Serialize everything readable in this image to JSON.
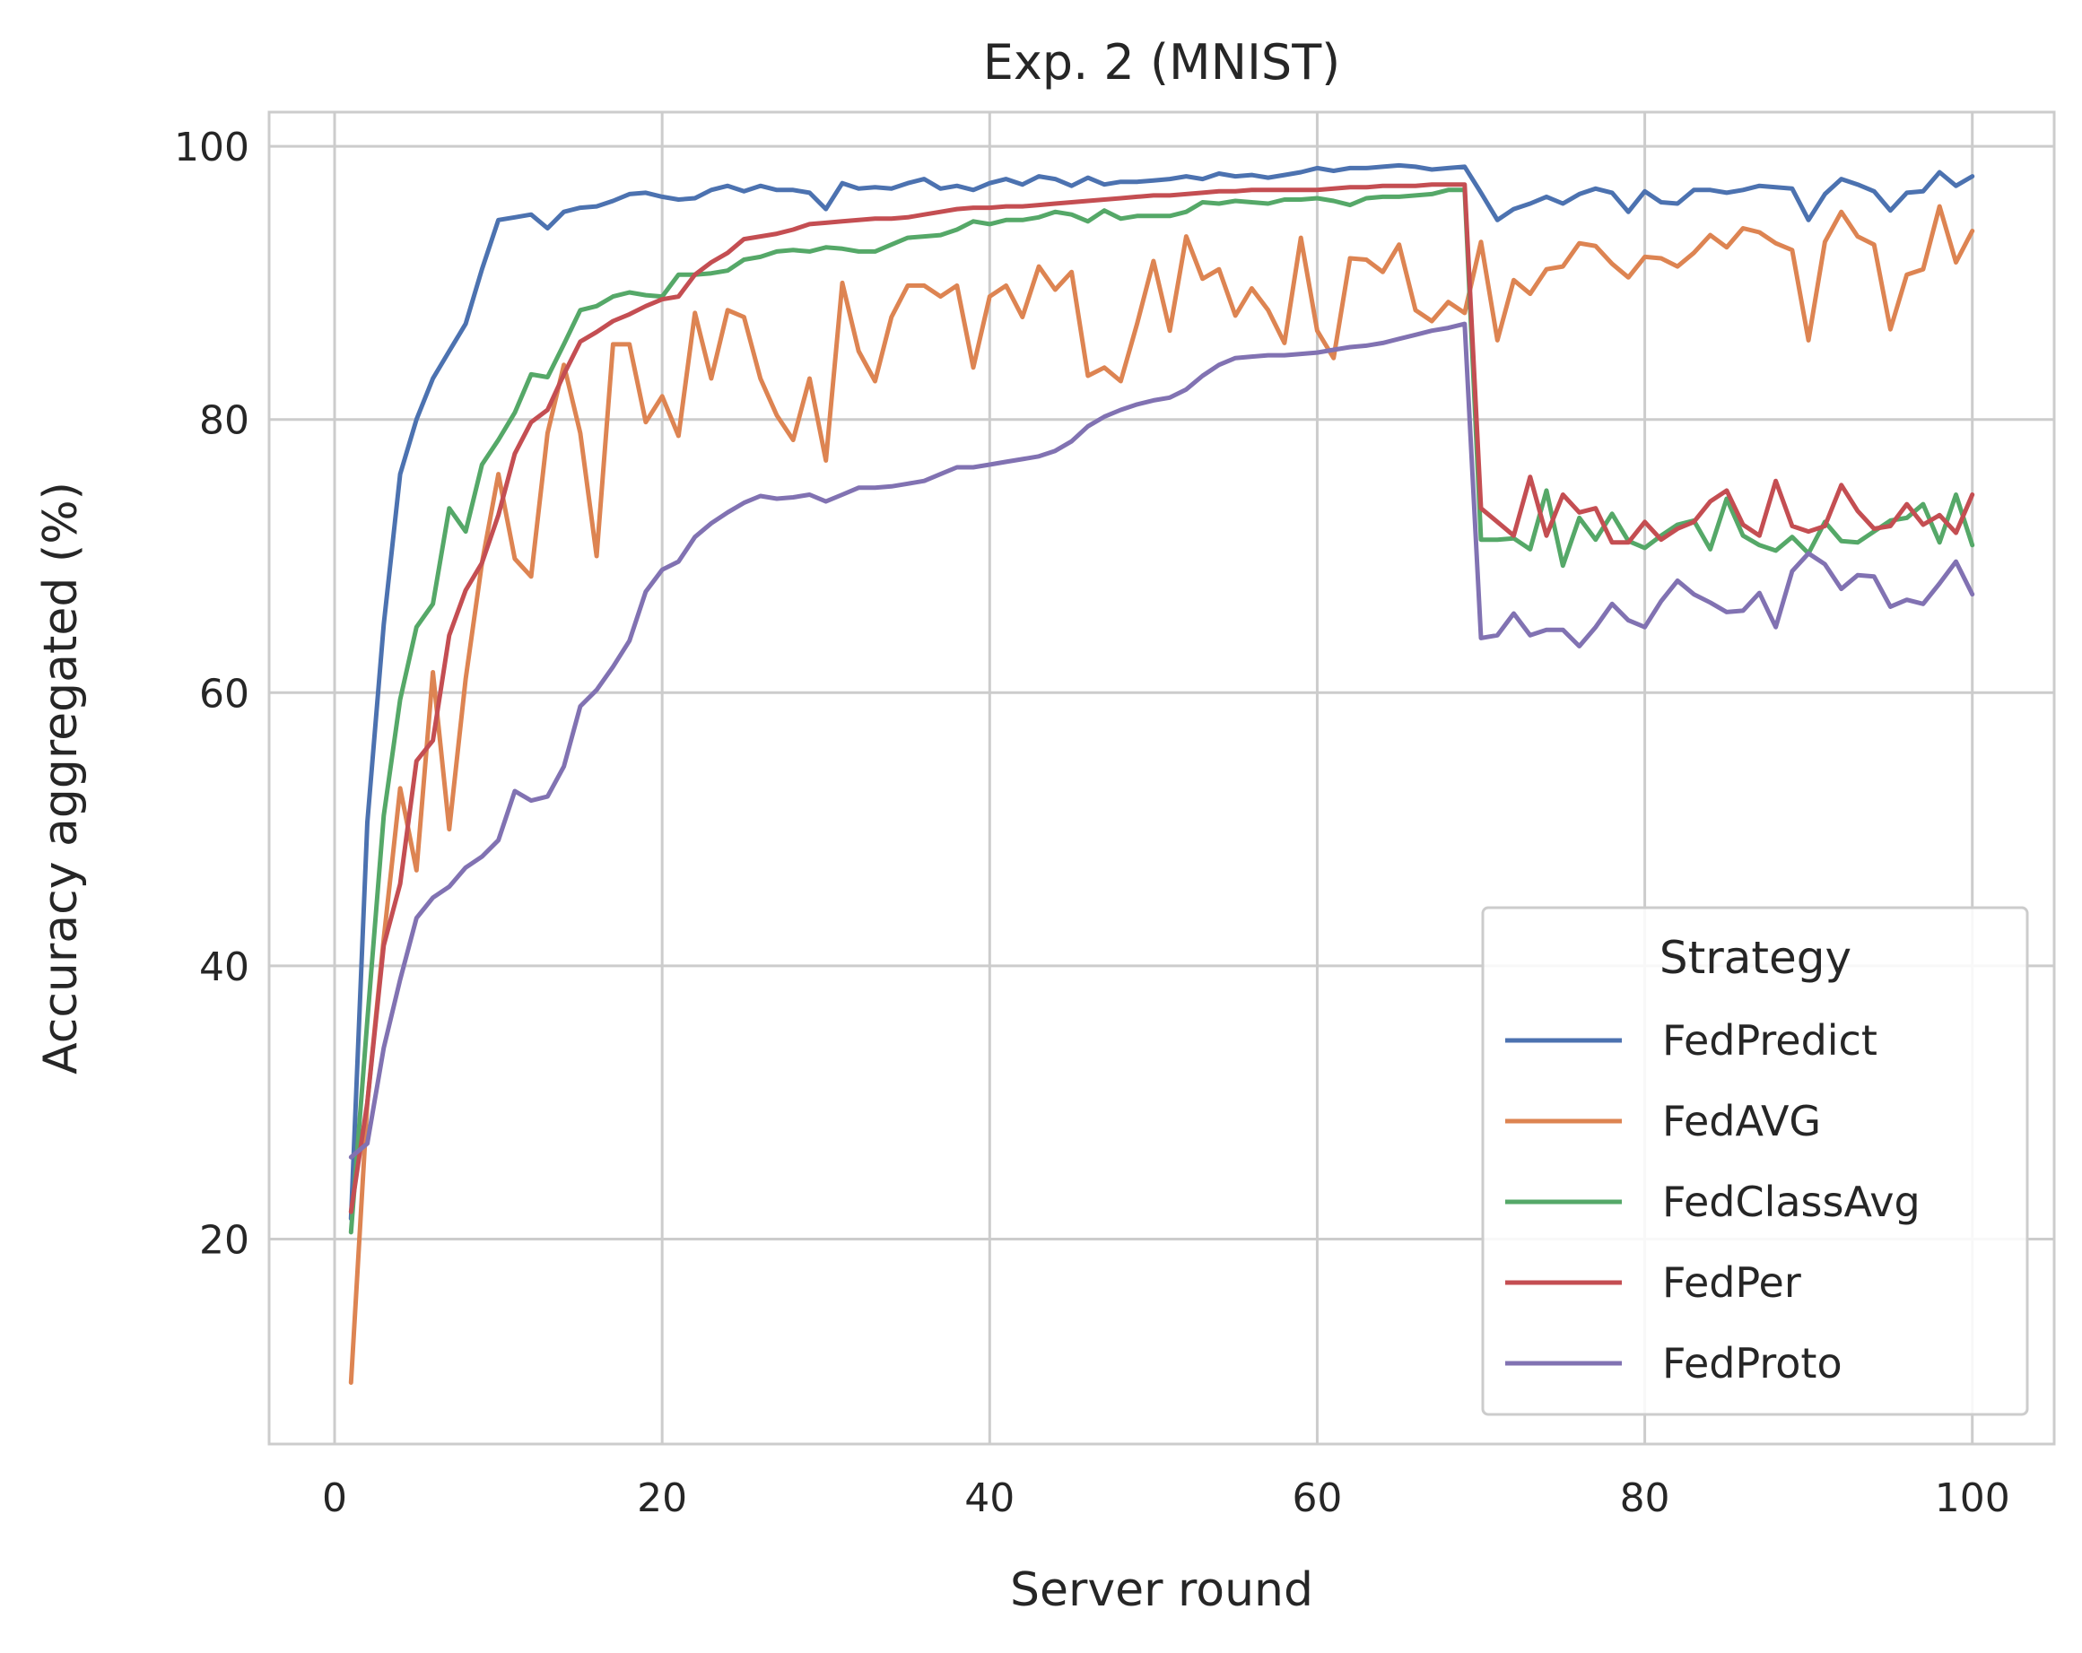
{
  "chart_data": {
    "type": "line",
    "title": "Exp. 2 (MNIST)",
    "xlabel": "Server round",
    "ylabel": "Accuracy aggregated (%)",
    "xlim": [
      -4,
      105
    ],
    "ylim": [
      5,
      102.5
    ],
    "xticks": [
      "0",
      "20",
      "40",
      "60",
      "80",
      "100"
    ],
    "yticks": [
      "20",
      "40",
      "60",
      "80",
      "100"
    ],
    "grid": true,
    "legend": {
      "title": "Strategy",
      "placement": "lower-right"
    },
    "x": [
      1,
      2,
      3,
      4,
      5,
      6,
      7,
      8,
      9,
      10,
      11,
      12,
      13,
      14,
      15,
      16,
      17,
      18,
      19,
      20,
      21,
      22,
      23,
      24,
      25,
      26,
      27,
      28,
      29,
      30,
      31,
      32,
      33,
      34,
      35,
      36,
      37,
      38,
      39,
      40,
      41,
      42,
      43,
      44,
      45,
      46,
      47,
      48,
      49,
      50,
      51,
      52,
      53,
      54,
      55,
      56,
      57,
      58,
      59,
      60,
      61,
      62,
      63,
      64,
      65,
      66,
      67,
      68,
      69,
      70,
      71,
      72,
      73,
      74,
      75,
      76,
      77,
      78,
      79,
      80,
      81,
      82,
      83,
      84,
      85,
      86,
      87,
      88,
      89,
      90,
      91,
      92,
      93,
      94,
      95,
      96,
      97,
      98,
      99,
      100
    ],
    "series": [
      {
        "name": "FedPredict",
        "color": "#4c72b0",
        "values": [
          21.5,
          50.5,
          65.0,
          76.0,
          80.0,
          83.0,
          85.0,
          87.0,
          91.0,
          94.6,
          94.8,
          95.0,
          94.0,
          95.2,
          95.5,
          95.6,
          96.0,
          96.5,
          96.6,
          96.3,
          96.1,
          96.2,
          96.8,
          97.1,
          96.7,
          97.1,
          96.8,
          96.8,
          96.6,
          95.4,
          97.3,
          96.9,
          97.0,
          96.9,
          97.3,
          97.6,
          96.9,
          97.1,
          96.8,
          97.3,
          97.6,
          97.2,
          97.8,
          97.6,
          97.1,
          97.7,
          97.2,
          97.4,
          97.4,
          97.5,
          97.6,
          97.8,
          97.6,
          98.0,
          97.8,
          97.9,
          97.7,
          97.9,
          98.1,
          98.4,
          98.2,
          98.4,
          98.4,
          98.5,
          98.6,
          98.5,
          98.3,
          98.4,
          98.5,
          96.6,
          94.6,
          95.4,
          95.8,
          96.3,
          95.8,
          96.5,
          96.9,
          96.6,
          95.2,
          96.7,
          95.9,
          95.8,
          96.8,
          96.8,
          96.6,
          96.8,
          97.1,
          97.0,
          96.9,
          94.6,
          96.5,
          97.6,
          97.2,
          96.7,
          95.3,
          96.6,
          96.7,
          98.1,
          97.1,
          97.8
        ]
      },
      {
        "name": "FedAVG",
        "color": "#dd8452",
        "values": [
          9.5,
          30.0,
          42.0,
          53.0,
          47.0,
          61.5,
          50.0,
          61.0,
          69.5,
          76.0,
          69.8,
          68.5,
          79.0,
          84.0,
          79.0,
          70.0,
          85.5,
          85.5,
          79.8,
          81.7,
          78.8,
          87.8,
          83.0,
          88.0,
          87.5,
          83.0,
          80.3,
          78.5,
          83.0,
          77.0,
          90.0,
          85.0,
          82.8,
          87.5,
          89.8,
          89.8,
          89.0,
          89.8,
          83.8,
          89.0,
          89.8,
          87.5,
          91.2,
          89.5,
          90.8,
          83.2,
          83.8,
          82.8,
          87.0,
          91.6,
          86.5,
          93.4,
          90.3,
          91.0,
          87.6,
          89.6,
          88.0,
          85.6,
          93.3,
          86.5,
          84.5,
          91.8,
          91.7,
          90.8,
          92.8,
          88.0,
          87.2,
          88.6,
          87.8,
          93.0,
          85.8,
          90.2,
          89.2,
          91.0,
          91.2,
          92.9,
          92.7,
          91.4,
          90.4,
          91.9,
          91.8,
          91.2,
          92.2,
          93.5,
          92.6,
          94.0,
          93.7,
          92.9,
          92.4,
          85.8,
          93.0,
          95.2,
          93.4,
          92.8,
          86.6,
          90.6,
          91.0,
          95.6,
          91.5,
          93.8
        ]
      },
      {
        "name": "FedClassAvg",
        "color": "#55a868",
        "values": [
          20.5,
          36.0,
          51.0,
          59.5,
          64.8,
          66.5,
          73.5,
          71.8,
          76.7,
          78.5,
          80.5,
          83.3,
          83.1,
          85.5,
          88.0,
          88.3,
          89.0,
          89.3,
          89.1,
          89.0,
          90.6,
          90.6,
          90.7,
          90.9,
          91.7,
          91.9,
          92.3,
          92.4,
          92.3,
          92.6,
          92.5,
          92.3,
          92.3,
          92.8,
          93.3,
          93.4,
          93.5,
          93.9,
          94.5,
          94.3,
          94.6,
          94.6,
          94.8,
          95.2,
          95.0,
          94.5,
          95.3,
          94.7,
          94.9,
          94.9,
          94.9,
          95.2,
          95.9,
          95.8,
          96.0,
          95.9,
          95.8,
          96.1,
          96.1,
          96.2,
          96.0,
          95.7,
          96.2,
          96.3,
          96.3,
          96.4,
          96.5,
          96.8,
          96.8,
          71.2,
          71.2,
          71.3,
          70.5,
          74.8,
          69.3,
          72.8,
          71.2,
          73.1,
          71.1,
          70.6,
          71.5,
          72.3,
          72.6,
          70.5,
          74.2,
          71.5,
          70.8,
          70.4,
          71.4,
          70.2,
          72.5,
          71.1,
          71.0,
          71.8,
          72.6,
          72.8,
          73.8,
          71.0,
          74.5,
          70.8
        ]
      },
      {
        "name": "FedPer",
        "color": "#c44e52",
        "values": [
          22.0,
          30.0,
          41.5,
          46.0,
          55.0,
          56.5,
          64.2,
          67.5,
          69.5,
          73.0,
          77.5,
          79.8,
          80.7,
          83.3,
          85.7,
          86.4,
          87.2,
          87.7,
          88.3,
          88.8,
          89.0,
          90.6,
          91.5,
          92.2,
          93.2,
          93.4,
          93.6,
          93.9,
          94.3,
          94.4,
          94.5,
          94.6,
          94.7,
          94.7,
          94.8,
          95.0,
          95.2,
          95.4,
          95.5,
          95.5,
          95.6,
          95.6,
          95.7,
          95.8,
          95.9,
          96.0,
          96.1,
          96.2,
          96.3,
          96.4,
          96.4,
          96.5,
          96.6,
          96.7,
          96.7,
          96.8,
          96.8,
          96.8,
          96.8,
          96.8,
          96.9,
          97.0,
          97.0,
          97.1,
          97.1,
          97.1,
          97.2,
          97.2,
          97.2,
          73.5,
          72.5,
          71.5,
          75.8,
          71.5,
          74.5,
          73.2,
          73.5,
          71.0,
          71.0,
          72.5,
          71.2,
          72.0,
          72.5,
          74.0,
          74.8,
          72.3,
          71.5,
          75.5,
          72.2,
          71.8,
          72.2,
          75.2,
          73.3,
          72.0,
          72.2,
          73.8,
          72.3,
          73.0,
          71.7,
          74.5
        ]
      },
      {
        "name": "FedProto",
        "color": "#8172b2",
        "values": [
          26.0,
          27.0,
          34.0,
          39.0,
          43.5,
          45.0,
          45.8,
          47.2,
          48.0,
          49.2,
          52.8,
          52.1,
          52.4,
          54.6,
          59.0,
          60.2,
          61.9,
          63.8,
          67.4,
          69.0,
          69.6,
          71.4,
          72.4,
          73.2,
          73.9,
          74.4,
          74.2,
          74.3,
          74.5,
          74.0,
          74.5,
          75.0,
          75.0,
          75.1,
          75.3,
          75.5,
          76.0,
          76.5,
          76.5,
          76.7,
          76.9,
          77.1,
          77.3,
          77.7,
          78.4,
          79.5,
          80.2,
          80.7,
          81.1,
          81.4,
          81.6,
          82.2,
          83.2,
          84.0,
          84.5,
          84.6,
          84.7,
          84.7,
          84.8,
          84.9,
          85.1,
          85.3,
          85.4,
          85.6,
          85.9,
          86.2,
          86.5,
          86.7,
          87.0,
          64.0,
          64.2,
          65.8,
          64.2,
          64.6,
          64.6,
          63.4,
          64.8,
          66.5,
          65.3,
          64.8,
          66.7,
          68.2,
          67.2,
          66.6,
          65.9,
          66.0,
          67.3,
          64.8,
          68.9,
          70.2,
          69.4,
          67.6,
          68.6,
          68.5,
          66.3,
          66.8,
          66.5,
          68.0,
          69.6,
          67.2
        ]
      }
    ]
  }
}
